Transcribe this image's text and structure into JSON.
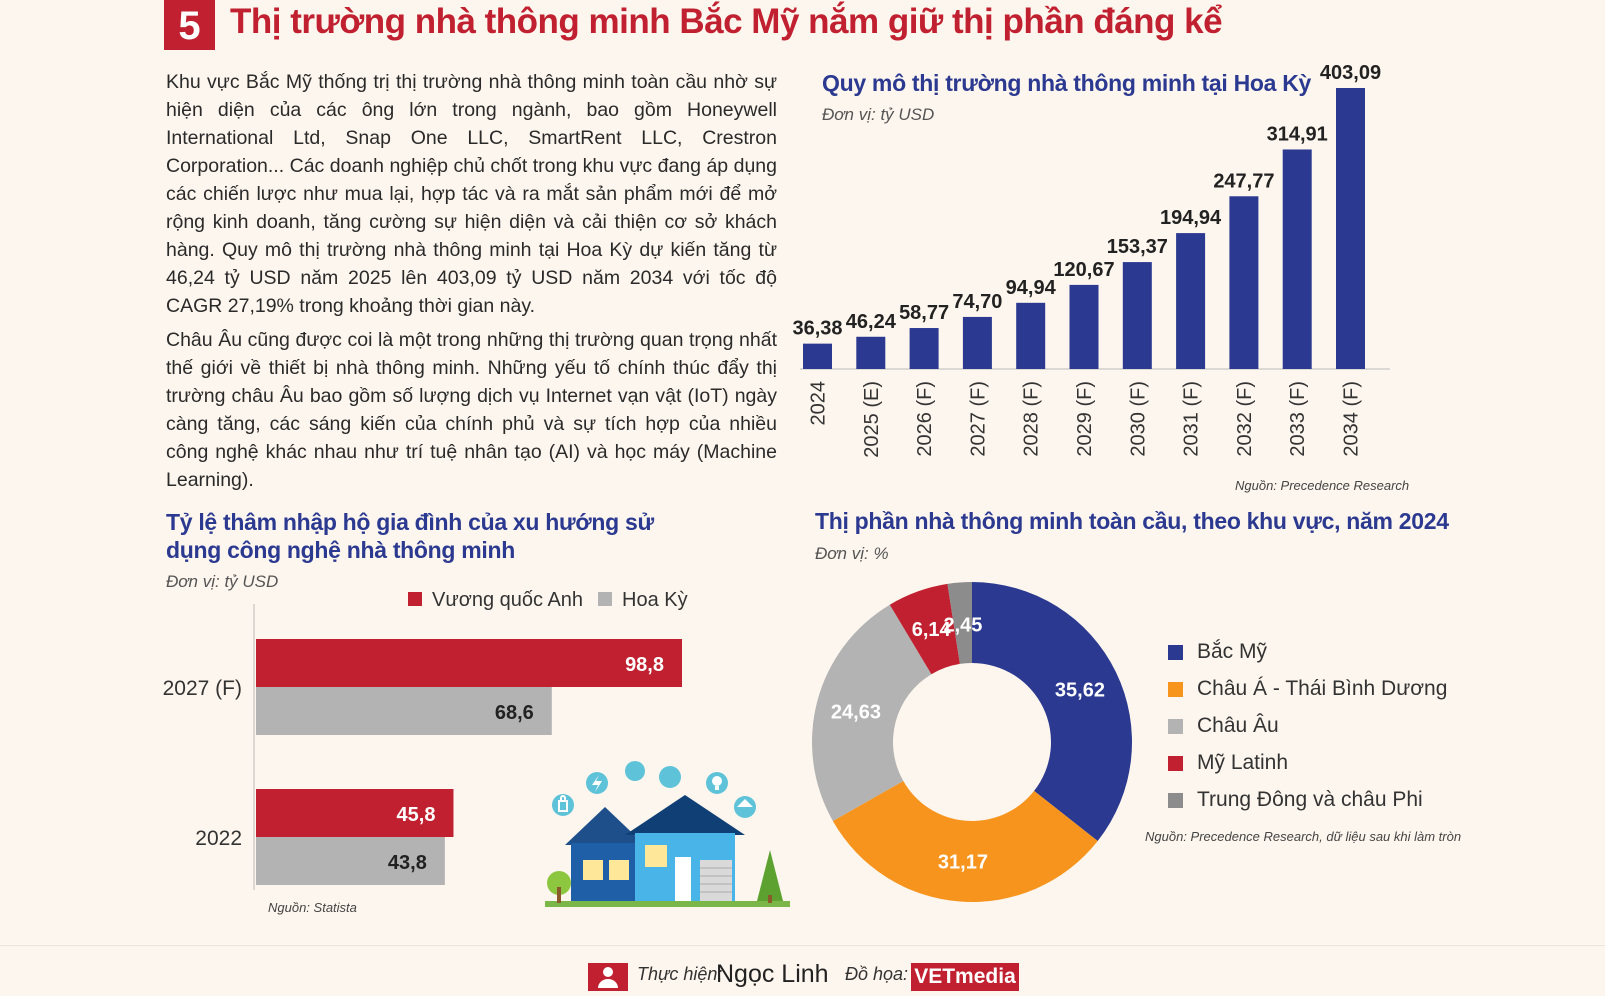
{
  "header": {
    "section_number": "5",
    "title": "Thị trường nhà thông minh Bắc Mỹ nắm giữ thị phần đáng kể"
  },
  "body": {
    "paragraph_1": "Khu vực Bắc Mỹ thống trị thị trường nhà thông minh toàn cầu nhờ sự hiện diện của các ông lớn trong ngành, bao gồm Honeywell International Ltd, Snap One LLC, SmartRent LLC, Crestron Corporation... Các doanh nghiệp chủ chốt trong khu vực đang áp dụng các chiến lược như mua lại, hợp tác và ra mắt sản phẩm mới để mở rộng kinh doanh, tăng cường sự hiện diện và cải thiện cơ sở khách hàng. Quy mô thị trường nhà thông minh tại Hoa Kỳ dự kiến tăng từ 46,24 tỷ USD năm 2025 lên 403,09 tỷ USD năm 2034 với tốc độ CAGR 27,19% trong khoảng thời gian này.",
    "paragraph_2": "Châu Âu cũng được coi là một trong những thị trường quan trọng nhất thế giới về thiết bị nhà thông minh. Những yếu tố chính thúc đẩy thị trường châu Âu bao gồm số lượng dịch vụ Internet vạn vật (IoT) ngày càng tăng, các sáng kiến của chính phủ và sự tích hợp của nhiều công nghệ khác nhau như trí tuệ nhân tạo (AI) và học máy (Machine Learning)."
  },
  "colors": {
    "red": "#c0202f",
    "navy": "#2b3990",
    "orange": "#f7941d",
    "gray": "#b3b3b3",
    "dark_gray": "#8c8c8c"
  },
  "chart_data": [
    {
      "type": "bar",
      "title": "Quy mô thị trường nhà thông minh tại Hoa Kỳ",
      "unit": "Đơn vị: tỷ USD",
      "source": "Nguồn: Precedence Research",
      "categories": [
        "2024",
        "2025 (E)",
        "2026 (F)",
        "2027 (F)",
        "2028 (F)",
        "2029 (F)",
        "2030 (F)",
        "2031 (F)",
        "2032 (F)",
        "2033 (F)",
        "2034 (F)"
      ],
      "values": [
        36.38,
        46.24,
        58.77,
        74.7,
        94.94,
        120.67,
        153.37,
        194.94,
        247.77,
        314.91,
        403.09
      ],
      "value_labels": [
        "36,38",
        "46,24",
        "58,77",
        "74,70",
        "94,94",
        "120,67",
        "153,37",
        "194,94",
        "247,77",
        "314,91",
        "403,09"
      ],
      "ylim": [
        0,
        403.09
      ],
      "grid": false,
      "color": "#2b3990"
    },
    {
      "type": "bar",
      "orientation": "horizontal",
      "title": "Tỷ lệ thâm nhập hộ gia đình của xu hướng sử dụng công nghệ nhà thông minh",
      "unit": "Đơn vị: tỷ USD",
      "source": "Nguồn: Statista",
      "categories": [
        "2027 (F)",
        "2022"
      ],
      "series": [
        {
          "name": "Vương quốc Anh",
          "values": [
            98.8,
            45.8
          ],
          "labels": [
            "98,8",
            "45,8"
          ],
          "color": "#c0202f"
        },
        {
          "name": "Hoa Kỳ",
          "values": [
            68.6,
            43.8
          ],
          "labels": [
            "68,6",
            "43,8"
          ],
          "color": "#b3b3b3"
        }
      ],
      "xlim": [
        0,
        98.8
      ],
      "legend": "top"
    },
    {
      "type": "pie",
      "variant": "donut",
      "title": "Thị phần nhà thông minh toàn cầu, theo khu vực, năm 2024",
      "unit": "Đơn vị: %",
      "source": "Nguồn: Precedence Research, dữ liệu sau khi làm tròn",
      "slices": [
        {
          "name": "Bắc Mỹ",
          "value": 35.62,
          "label": "35,62",
          "color": "#2b3990"
        },
        {
          "name": "Châu Á - Thái Bình Dương",
          "value": 31.17,
          "label": "31,17",
          "color": "#f7941d"
        },
        {
          "name": "Châu Âu",
          "value": 24.63,
          "label": "24,63",
          "color": "#b3b3b3"
        },
        {
          "name": "Mỹ Latinh",
          "value": 6.14,
          "label": "6,14",
          "color": "#c0202f"
        },
        {
          "name": "Trung Đông và châu Phi",
          "value": 2.45,
          "label": "2,45",
          "color": "#8c8c8c"
        }
      ],
      "legend": "right"
    }
  ],
  "illustration": {
    "icon": "smart-home-house-illustration"
  },
  "footer": {
    "credit_label": "Thực hiện:",
    "author": "Ngọc Linh",
    "design_label": "Đồ họa:",
    "brand": "VETmedia",
    "icon": "person-icon"
  }
}
